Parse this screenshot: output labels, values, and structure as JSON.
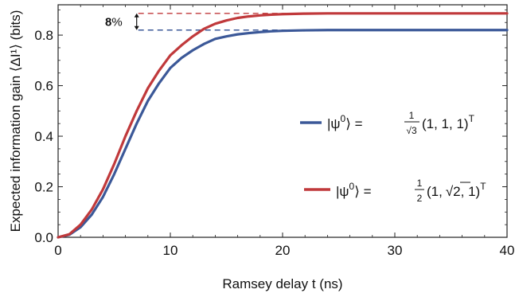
{
  "chart_data": {
    "type": "line",
    "xlabel": "Ramsey delay t (ns)",
    "ylabel": "Expected information gain ⟨ΔI¹⟩ (bits)",
    "xlim": [
      0,
      40
    ],
    "ylim": [
      0,
      0.92
    ],
    "xticks": [
      0,
      10,
      20,
      30,
      40
    ],
    "yticks": [
      0.0,
      0.2,
      0.4,
      0.6,
      0.8
    ],
    "xtick_labels": [
      "0",
      "10",
      "20",
      "30",
      "40"
    ],
    "ytick_labels": [
      "0.0",
      "0.2",
      "0.4",
      "0.6",
      "0.8"
    ],
    "grid": false,
    "legend_placement": "right",
    "x": [
      0,
      1,
      2,
      3,
      4,
      5,
      6,
      7,
      8,
      9,
      10,
      11,
      12,
      13,
      14,
      15,
      16,
      17,
      18,
      19,
      20,
      22,
      24,
      26,
      28,
      30,
      32,
      34,
      36,
      38,
      40
    ],
    "series": [
      {
        "name": "|ψ0⟩ = 1/√3 (1, 1, 1)T",
        "color": "#3b5898",
        "values": [
          0.0,
          0.01,
          0.04,
          0.09,
          0.16,
          0.25,
          0.35,
          0.45,
          0.54,
          0.61,
          0.67,
          0.71,
          0.74,
          0.765,
          0.785,
          0.795,
          0.803,
          0.808,
          0.812,
          0.815,
          0.817,
          0.819,
          0.82,
          0.82,
          0.82,
          0.82,
          0.82,
          0.82,
          0.82,
          0.82,
          0.82
        ]
      },
      {
        "name": "|ψ0⟩ = 1/2 (1, √2, 1)T",
        "color": "#c0393b",
        "values": [
          0.0,
          0.012,
          0.05,
          0.11,
          0.19,
          0.29,
          0.4,
          0.5,
          0.59,
          0.66,
          0.72,
          0.76,
          0.795,
          0.825,
          0.845,
          0.858,
          0.868,
          0.874,
          0.878,
          0.881,
          0.883,
          0.885,
          0.886,
          0.886,
          0.886,
          0.886,
          0.886,
          0.886,
          0.886,
          0.886,
          0.886
        ]
      }
    ],
    "annotation": {
      "text": "8%",
      "at_x": 7,
      "y_low": 0.82,
      "y_high": 0.886
    }
  },
  "legend": {
    "blue": {
      "left": "|ψ",
      "sup": "0",
      "mid": "⟩ =",
      "frac_num": "1",
      "frac_den": "√3",
      "vec": "(1, 1, 1)",
      "vsup": "T"
    },
    "red": {
      "left": "|ψ",
      "sup": "0",
      "mid": "⟩ =",
      "frac_num": "1",
      "frac_den": "2",
      "vec_a": "(1,",
      "root": "√2",
      "vec_b": ", 1)",
      "vsup": "T"
    }
  }
}
